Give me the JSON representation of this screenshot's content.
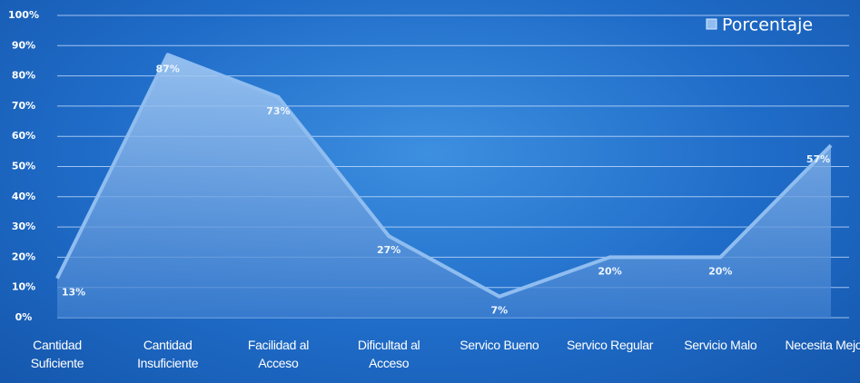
{
  "chart_data": {
    "type": "area",
    "categories": [
      "Cantidad Suficiente",
      "Cantidad Insuficiente",
      "Facilidad al Acceso",
      "Dificultad al Acceso",
      "Servico Bueno",
      "Servico Regular",
      "Servicio Malo",
      "Necesita Mejorar"
    ],
    "series": [
      {
        "name": "Porcentaje",
        "color": "#8fbdf0",
        "values": [
          13,
          87,
          73,
          27,
          7,
          20,
          20,
          57
        ],
        "value_labels": [
          "13%",
          "87%",
          "73%",
          "27%",
          "7%",
          "20%",
          "20%",
          "57%"
        ]
      }
    ],
    "ylim": [
      0,
      100
    ],
    "yticks": [
      {
        "value": 0,
        "label": "0%"
      },
      {
        "value": 10,
        "label": "10%"
      },
      {
        "value": 20,
        "label": "20%"
      },
      {
        "value": 30,
        "label": "30%"
      },
      {
        "value": 40,
        "label": "40%"
      },
      {
        "value": 50,
        "label": "50%"
      },
      {
        "value": 60,
        "label": "60%"
      },
      {
        "value": 70,
        "label": "70%"
      },
      {
        "value": 80,
        "label": "80%"
      },
      {
        "value": 90,
        "label": "90%"
      },
      {
        "value": 100,
        "label": "100%"
      }
    ],
    "grid": true,
    "legend": "top-right"
  }
}
